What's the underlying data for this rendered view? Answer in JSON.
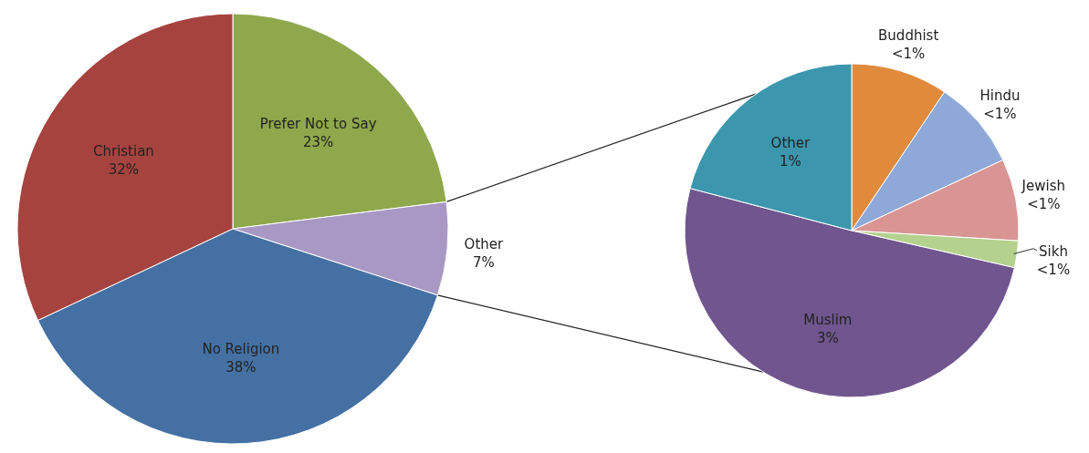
{
  "chart_data": [
    {
      "type": "pie",
      "categories": [
        "Prefer Not to Say",
        "Other",
        "No Religion",
        "Christian"
      ],
      "values": [
        23,
        7,
        38,
        32
      ],
      "colors": [
        "#8ea84b",
        "#a898c3",
        "#4570a3",
        "#a6433f"
      ],
      "value_labels": [
        "23%",
        "7%",
        "38%",
        "32%"
      ]
    },
    {
      "type": "pie",
      "categories": [
        "Buddhist",
        "Hindu",
        "Jewish",
        "Sikh",
        "Muslim",
        "Other"
      ],
      "values": [
        0.65,
        0.6,
        0.55,
        0.18,
        3.5,
        1.45
      ],
      "colors": [
        "#e08a3c",
        "#8ea9d8",
        "#d99594",
        "#b5d18e",
        "#70558f",
        "#3c97ae"
      ],
      "value_labels": [
        "<1%",
        "<1%",
        "<1%",
        "<1%",
        "3%",
        "1%"
      ]
    }
  ]
}
